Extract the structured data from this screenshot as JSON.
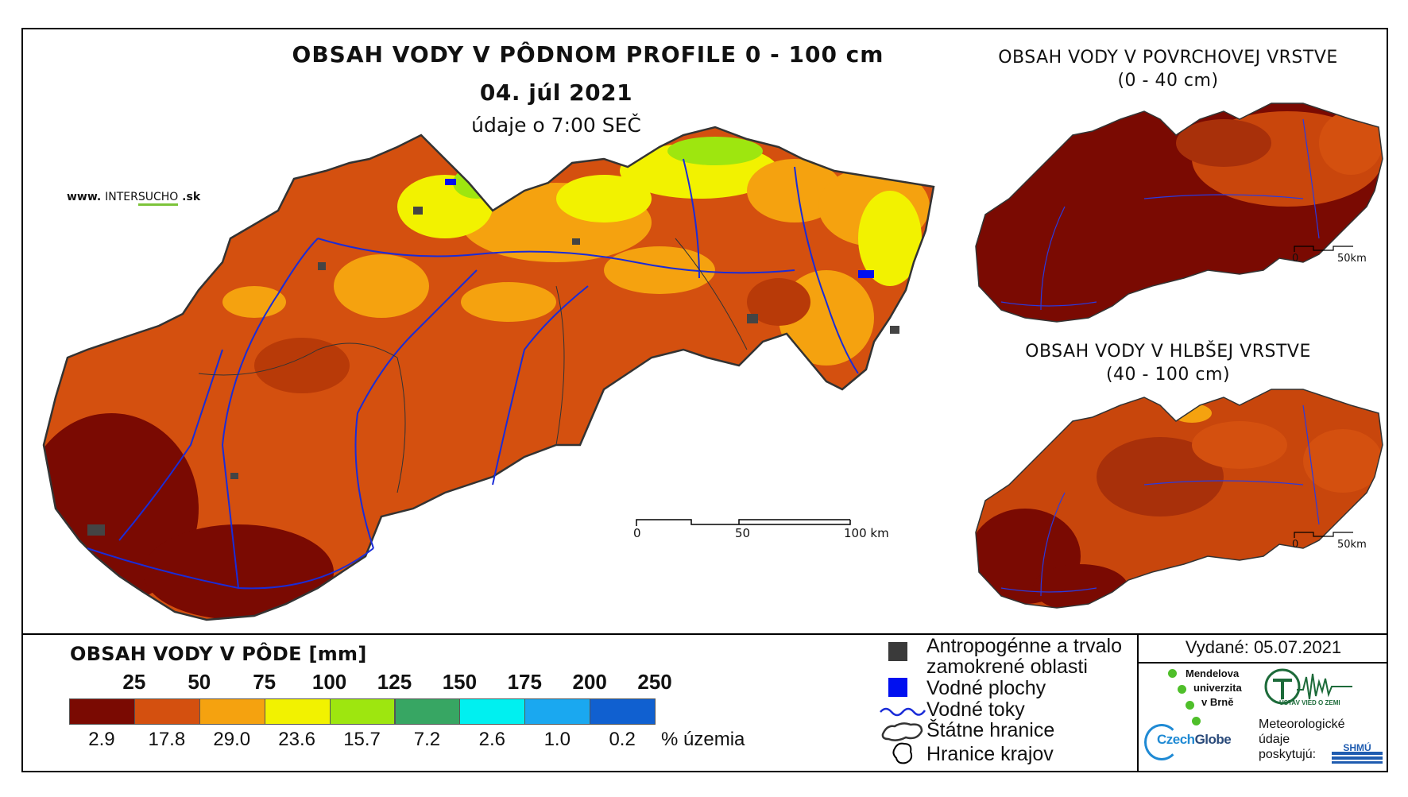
{
  "main_map": {
    "title": "OBSAH VODY V PÔDNOM PROFILE 0 - 100 cm",
    "date": "04. júl 2021",
    "time": "údaje o 7:00 SEČ",
    "website": {
      "www": "www. ",
      "inter": "INTER",
      "sucho": "SUCHO",
      "sk": " .sk"
    },
    "scale": {
      "labels": [
        "0",
        "50",
        "100 km"
      ]
    }
  },
  "inset_top": {
    "title": "OBSAH VODY V POVRCHOVEJ VRSTVE",
    "subtitle": "(0 - 40 cm)",
    "scale": {
      "labels": [
        "0",
        "50km"
      ]
    }
  },
  "inset_bottom": {
    "title": "OBSAH VODY V HLBŠEJ VRSTVE",
    "subtitle": "(40 - 100 cm)",
    "scale": {
      "labels": [
        "0",
        "50km"
      ]
    }
  },
  "legend": {
    "title": "OBSAH VODY V PÔDE [mm]",
    "thresholds": [
      "25",
      "50",
      "75",
      "100",
      "125",
      "150",
      "175",
      "200",
      "250"
    ],
    "colors": [
      "#7a0a02",
      "#d4500f",
      "#f5a20f",
      "#f2f200",
      "#9ee60f",
      "#37a663",
      "#00f0f0",
      "#1aa8f0",
      "#1060d0"
    ],
    "percent": [
      "2.9",
      "17.8",
      "29.0",
      "23.6",
      "15.7",
      "7.2",
      "2.6",
      "1.0",
      "0.2"
    ],
    "percent_unit": "% územia"
  },
  "symbols": {
    "items": [
      "Antropogénne a trvalo",
      "zamokrené oblasti",
      "Vodné plochy",
      "Vodné toky",
      "Štátne hranice",
      "Hranice krajov"
    ]
  },
  "issued": "Vydané: 05.07.2021",
  "logos": {
    "mendel": [
      "Mendelova",
      "univerzita",
      "v Brně"
    ],
    "ustav": "ÚSTAV VIED O ZEMI",
    "czechglobe_czech": "Czech",
    "czechglobe_globe": "Globe",
    "meteo": [
      "Meteorologické",
      "údaje",
      "poskytujú:"
    ],
    "shmu": "SHMÚ"
  }
}
